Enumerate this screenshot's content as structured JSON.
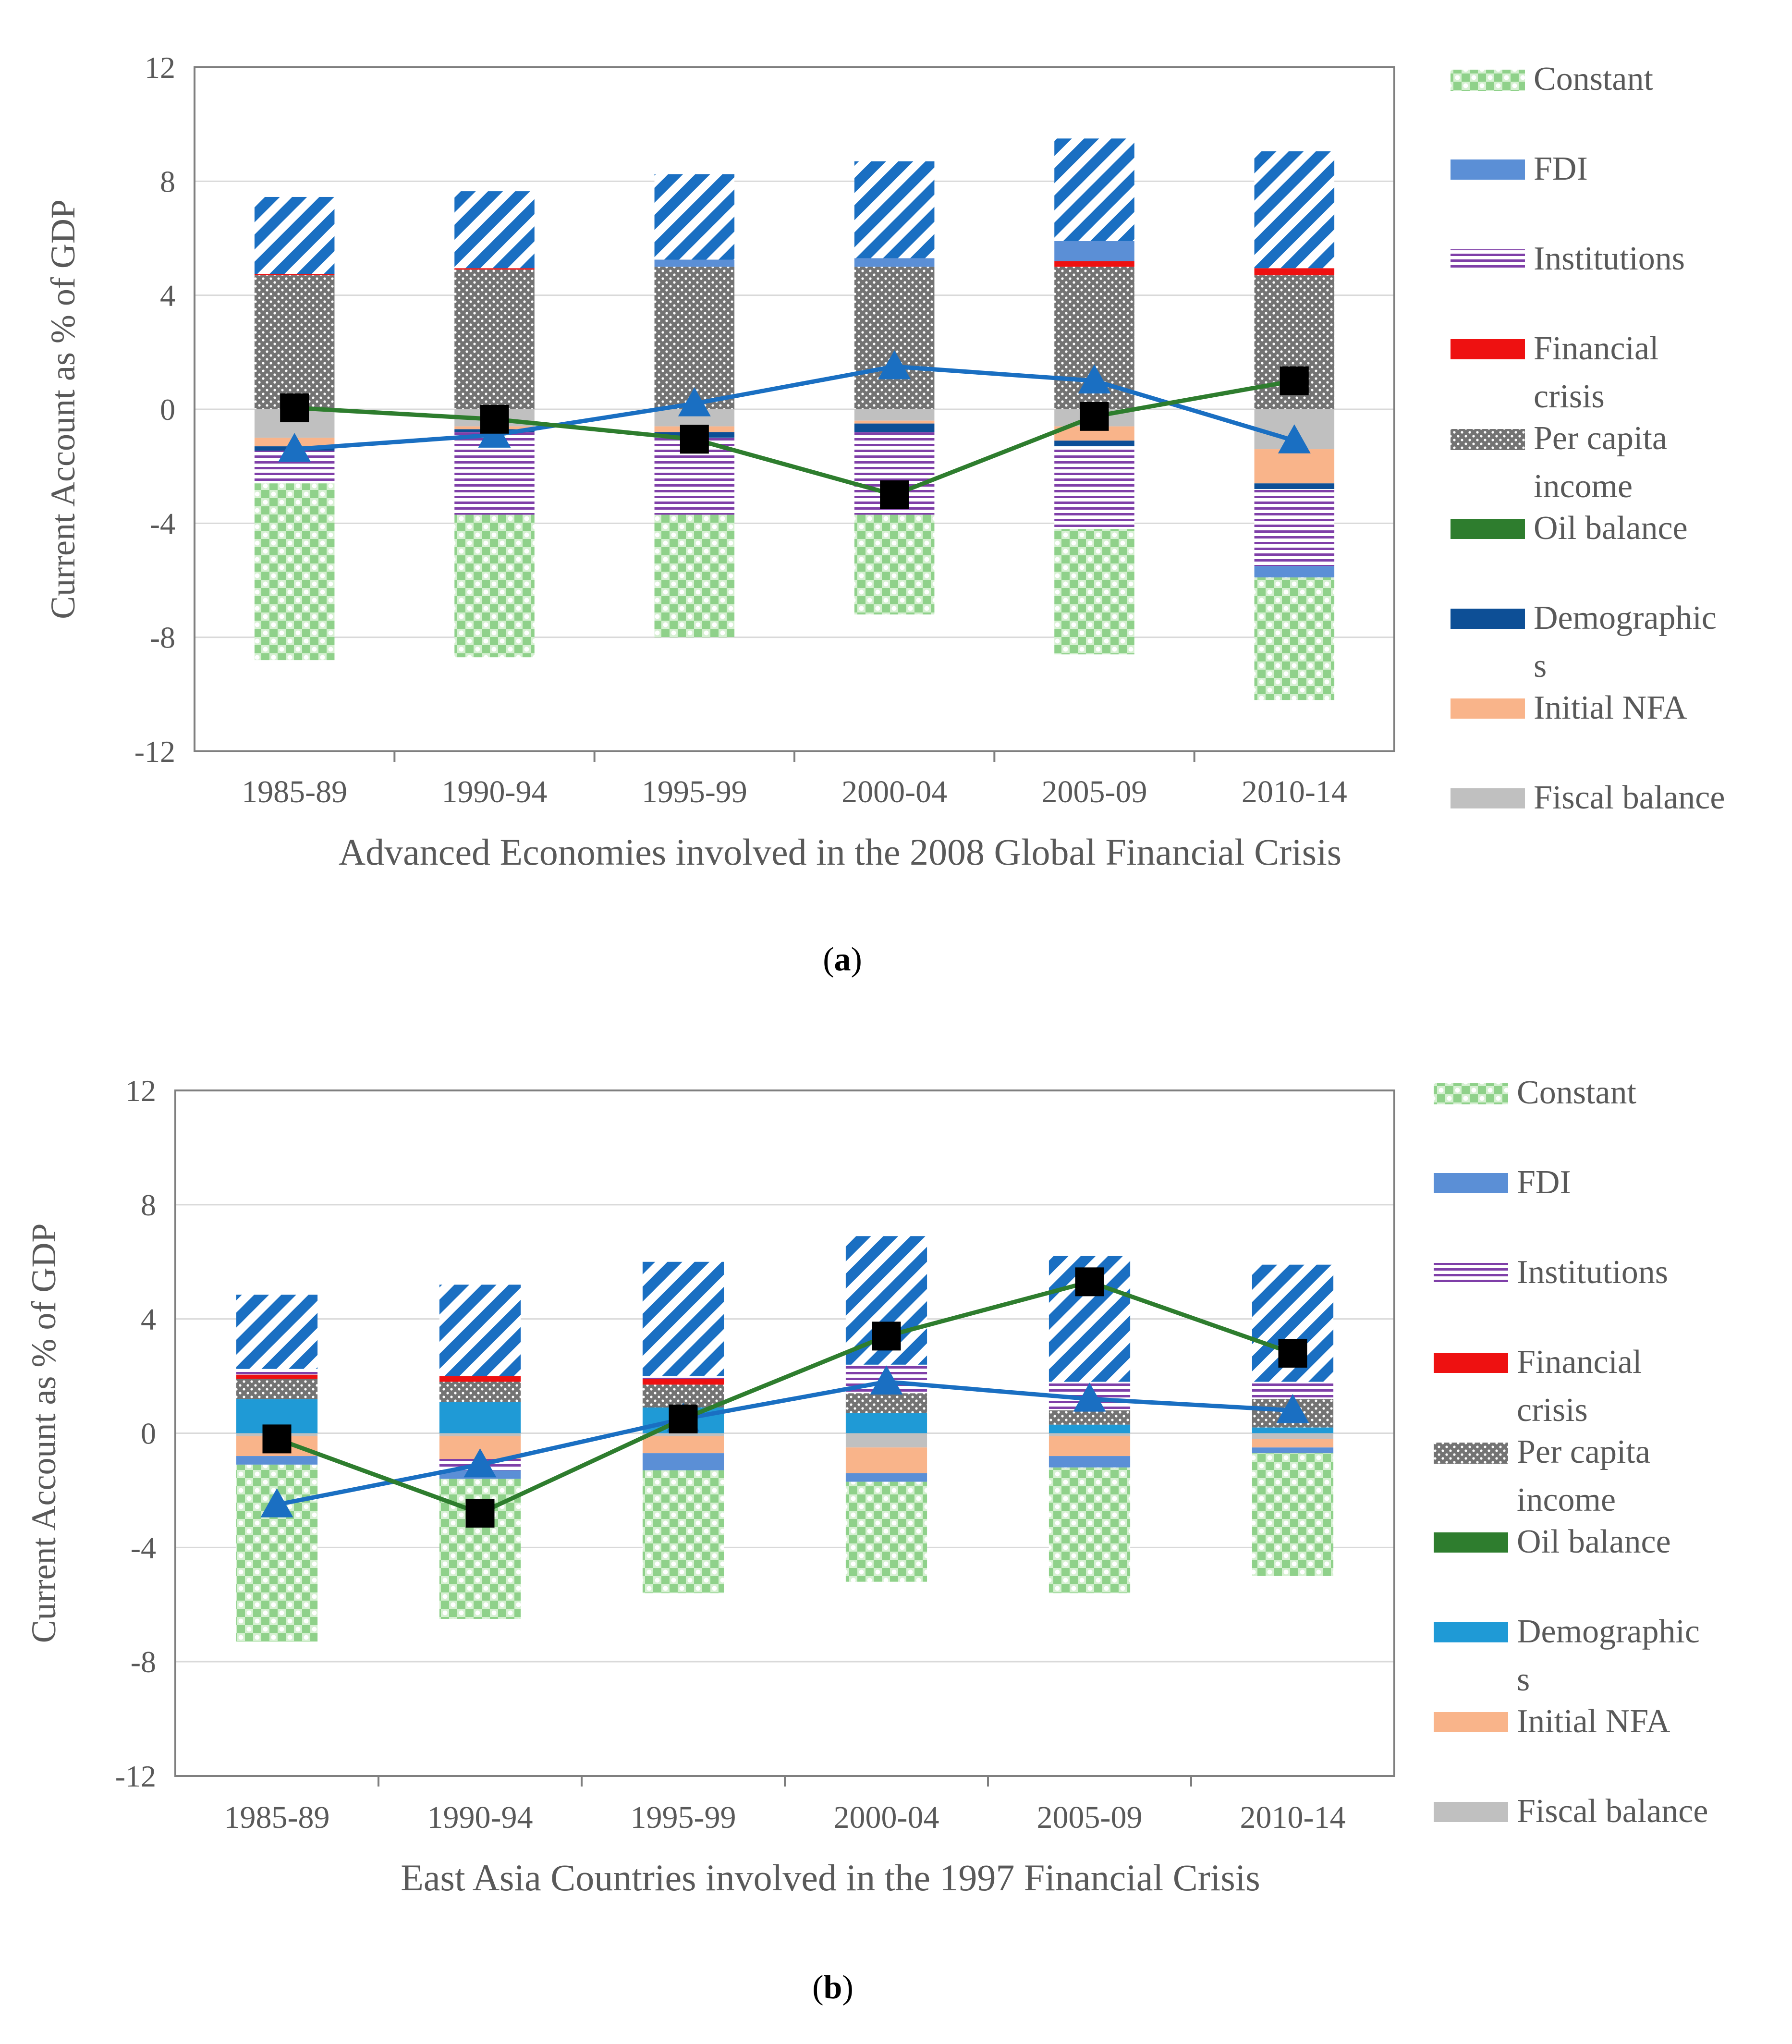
{
  "figure": {
    "ylabel": "Current Account as % of GDP",
    "categories": [
      "1985-89",
      "1990-94",
      "1995-99",
      "2000-04",
      "2005-09",
      "2010-14"
    ],
    "legend": [
      {
        "key": "constant",
        "label_lines": [
          "Constant"
        ],
        "pattern": "checker"
      },
      {
        "key": "fdi",
        "label_lines": [
          "FDI"
        ],
        "pattern": "solid"
      },
      {
        "key": "institutions",
        "label_lines": [
          "Institutions"
        ],
        "pattern": "hstripe"
      },
      {
        "key": "financial_crisis",
        "label_lines": [
          "Financial",
          "crisis"
        ],
        "pattern": "solid"
      },
      {
        "key": "per_capita_income",
        "label_lines": [
          "Per capita",
          "income"
        ],
        "pattern": "dots"
      },
      {
        "key": "oil_balance",
        "label_lines": [
          "Oil balance"
        ],
        "pattern": "solid"
      },
      {
        "key": "demographics",
        "label_lines": [
          "Demographic",
          "s"
        ],
        "pattern": "solid"
      },
      {
        "key": "initial_nfa",
        "label_lines": [
          "Initial NFA"
        ],
        "pattern": "solid"
      },
      {
        "key": "fiscal_balance",
        "label_lines": [
          "Fiscal balance"
        ],
        "pattern": "solid"
      }
    ],
    "line_series": [
      {
        "key": "fitted",
        "marker": "triangle"
      },
      {
        "key": "actual",
        "marker": "square"
      }
    ]
  },
  "colors": {
    "constant": "#8fd18a",
    "fdi": "#5b8fd6",
    "institutions_stripe": "#7f3fa8",
    "financial_crisis": "#ee1111",
    "per_capita_income": "#737373",
    "oil_balance": "#2e7d2e",
    "demographics_a": "#0d4f96",
    "demographics_b": "#1f9ad6",
    "initial_nfa": "#f9b48a",
    "fiscal_balance": "#c0c0c0",
    "residual_stripe": "#1a6fc2",
    "fitted_line": "#1a6fc2",
    "actual_line": "#2e7d2e",
    "actual_marker": "#000000",
    "axis": "#7f7f7f",
    "grid": "#d9d9d9",
    "text": "#595959"
  },
  "chart_data": [
    {
      "id": "a",
      "type": "bar",
      "stacked": true,
      "panel_label": "a",
      "title": "",
      "xlabel": "Advanced Economies involved in the 2008 Global Financial Crisis",
      "ylabel": "Current Account as % of GDP",
      "ylim": [
        -12,
        12
      ],
      "yticks": [
        12,
        8,
        4,
        0,
        -4,
        -8,
        -12
      ],
      "categories": [
        "1985-89",
        "1990-94",
        "1995-99",
        "2000-04",
        "2005-09",
        "2010-14"
      ],
      "demographics_color": "demographics_a",
      "series": [
        {
          "name": "Fiscal balance",
          "key": "fiscal_balance",
          "values": [
            -1.0,
            -0.6,
            -0.6,
            -0.4,
            -0.6,
            -1.4
          ]
        },
        {
          "name": "Initial NFA",
          "key": "initial_nfa",
          "values": [
            -0.3,
            -0.1,
            -0.2,
            -0.1,
            -0.5,
            -1.2
          ]
        },
        {
          "name": "Demographics",
          "key": "demographics",
          "values": [
            -0.15,
            -0.1,
            -0.2,
            -0.3,
            -0.2,
            -0.2
          ]
        },
        {
          "name": "Oil balance",
          "key": "oil_balance",
          "values": [
            0,
            0,
            0,
            0,
            0,
            0
          ]
        },
        {
          "name": "Per capita income",
          "key": "per_capita_income",
          "values": [
            4.7,
            4.9,
            5.0,
            5.0,
            5.0,
            4.7
          ]
        },
        {
          "name": "Financial crisis",
          "key": "financial_crisis",
          "values": [
            0.05,
            0.05,
            0,
            0,
            0.2,
            0.25
          ]
        },
        {
          "name": "Institutions",
          "key": "institutions",
          "values": [
            -1.15,
            -2.9,
            -2.7,
            -2.9,
            -2.9,
            -2.7
          ]
        },
        {
          "name": "FDI",
          "key": "fdi",
          "values": [
            0,
            0,
            0.25,
            0.3,
            0.7,
            -0.4
          ]
        },
        {
          "name": "Constant",
          "key": "constant",
          "values": [
            -6.2,
            -5.0,
            -4.3,
            -3.5,
            -4.4,
            -4.3
          ]
        },
        {
          "name": "Residual",
          "key": "residual",
          "values": [
            2.7,
            2.7,
            3.0,
            3.4,
            3.6,
            4.1
          ]
        }
      ],
      "lines": {
        "fitted": [
          -1.4,
          -0.9,
          0.2,
          1.5,
          1.0,
          -1.1
        ],
        "actual": [
          0.05,
          -0.35,
          -1.05,
          -3.0,
          -0.25,
          1.0
        ]
      }
    },
    {
      "id": "b",
      "type": "bar",
      "stacked": true,
      "panel_label": "b",
      "title": "",
      "xlabel": "East Asia Countries involved in the 1997 Financial Crisis",
      "ylabel": "Current Account as % of GDP",
      "ylim": [
        -12,
        12
      ],
      "yticks": [
        12,
        8,
        4,
        0,
        -4,
        -8,
        -12
      ],
      "categories": [
        "1985-89",
        "1990-94",
        "1995-99",
        "2000-04",
        "2005-09",
        "2010-14"
      ],
      "demographics_color": "demographics_b",
      "series": [
        {
          "name": "Fiscal balance",
          "key": "fiscal_balance",
          "values": [
            -0.1,
            -0.1,
            -0.1,
            -0.5,
            -0.1,
            -0.2
          ]
        },
        {
          "name": "Initial NFA",
          "key": "initial_nfa",
          "values": [
            -0.7,
            -0.8,
            -0.6,
            -0.9,
            -0.7,
            -0.3
          ]
        },
        {
          "name": "Demographics",
          "key": "demographics",
          "values": [
            1.2,
            1.1,
            0.9,
            0.7,
            0.3,
            0.2
          ]
        },
        {
          "name": "Oil balance",
          "key": "oil_balance",
          "values": [
            0,
            0,
            0,
            0,
            0,
            0
          ]
        },
        {
          "name": "Per capita income",
          "key": "per_capita_income",
          "values": [
            0.7,
            0.7,
            0.8,
            0.7,
            0.5,
            1.0
          ]
        },
        {
          "name": "Financial crisis",
          "key": "financial_crisis",
          "values": [
            0.15,
            0.2,
            0.2,
            0,
            0,
            0
          ]
        },
        {
          "name": "Institutions",
          "key": "institutions",
          "values": [
            0.2,
            -0.4,
            0.1,
            1.0,
            1.0,
            0.6
          ]
        },
        {
          "name": "FDI",
          "key": "fdi",
          "values": [
            -0.3,
            -0.3,
            -0.6,
            -0.3,
            -0.4,
            -0.2
          ]
        },
        {
          "name": "Constant",
          "key": "constant",
          "values": [
            -6.2,
            -4.9,
            -4.3,
            -3.5,
            -4.4,
            -4.3
          ]
        },
        {
          "name": "Residual",
          "key": "residual",
          "values": [
            2.6,
            3.2,
            4.0,
            4.5,
            4.4,
            4.1
          ]
        }
      ],
      "lines": {
        "fitted": [
          -2.5,
          -1.1,
          0.5,
          1.8,
          1.2,
          0.8
        ],
        "actual": [
          -0.2,
          -2.8,
          0.5,
          3.4,
          5.3,
          2.8
        ]
      }
    }
  ]
}
